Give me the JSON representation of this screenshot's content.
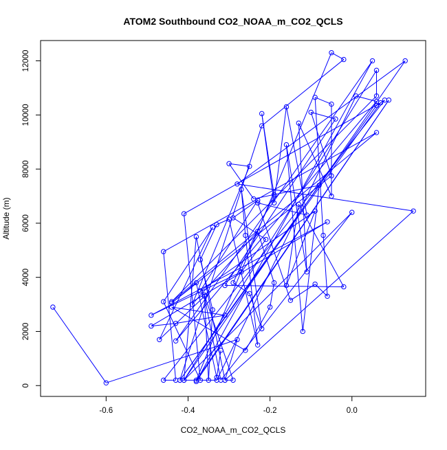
{
  "chart_data": {
    "type": "line",
    "title": "ATOM2 Southbound CO2_NOAA_m_CO2_QCLS",
    "xlabel": "CO2_NOAA_m_CO2_QCLS",
    "ylabel": "Altitude (m)",
    "xlim": [
      -0.76,
      0.18
    ],
    "ylim": [
      -400,
      12750
    ],
    "xticks": [
      -0.6,
      -0.4,
      -0.2,
      0.0
    ],
    "xtick_labels": [
      "-0.6",
      "-0.4",
      "-0.2",
      "0.0"
    ],
    "yticks": [
      0,
      2000,
      4000,
      6000,
      8000,
      10000,
      12000
    ],
    "ytick_labels": [
      "0",
      "2000",
      "4000",
      "6000",
      "8000",
      "10000",
      "12000"
    ],
    "series": [
      {
        "name": "CO2_NOAA_m_CO2_QCLS",
        "color": "#0000ff",
        "marker": "open-circle",
        "x": [
          -0.73,
          -0.6,
          -0.28,
          -0.31,
          0.15,
          -0.28,
          0.13,
          -0.41,
          0.06,
          0.06,
          -0.44,
          0.06,
          -0.46,
          -0.43,
          -0.46,
          0.08,
          0.06,
          -0.42,
          -0.33,
          0.01,
          0.06,
          -0.43,
          0.05,
          -0.38,
          0.09,
          -0.38,
          -0.05,
          -0.02,
          -0.22,
          -0.42,
          0.07,
          -0.41,
          -0.37,
          -0.46,
          -0.34,
          -0.47,
          -0.36,
          -0.32,
          0.0,
          -0.41,
          -0.38,
          -0.31,
          -0.29,
          -0.36,
          -0.35,
          -0.34,
          -0.37,
          -0.33,
          -0.3,
          -0.23,
          -0.26,
          -0.27,
          -0.22,
          -0.25,
          -0.29,
          -0.19,
          -0.22,
          -0.19,
          -0.16,
          -0.11,
          -0.23,
          -0.15,
          -0.09,
          -0.06,
          -0.07,
          -0.09,
          -0.05,
          -0.05,
          -0.13,
          -0.11,
          -0.16,
          -0.12,
          -0.08,
          -0.24,
          -0.3,
          -0.25,
          -0.39,
          -0.23,
          -0.19,
          -0.2,
          -0.26,
          -0.44,
          -0.31,
          -0.43,
          -0.49,
          -0.06,
          -0.49,
          -0.27,
          -0.21,
          -0.29,
          -0.23,
          -0.37,
          -0.09,
          -0.16,
          -0.13,
          -0.02,
          -0.31,
          -0.04,
          -0.1,
          -0.05,
          -0.44,
          -0.38,
          -0.33,
          -0.32
        ],
        "y": [
          2900,
          100,
          1700,
          200,
          6450,
          7450,
          12000,
          200,
          11650,
          10700,
          3100,
          9350,
          4950,
          200,
          200,
          10550,
          10350,
          200,
          200,
          10700,
          10500,
          1650,
          12000,
          150,
          10550,
          200,
          12300,
          12050,
          9600,
          200,
          10450,
          6350,
          200,
          3100,
          5850,
          1700,
          3300,
          200,
          6400,
          200,
          5500,
          200,
          200,
          3350,
          200,
          2800,
          4650,
          5950,
          6150,
          1500,
          5550,
          7250,
          2100,
          3400,
          3800,
          7050,
          10050,
          6750,
          10300,
          6300,
          6750,
          3150,
          3750,
          3300,
          5550,
          10650,
          10400,
          7000,
          9700,
          4200,
          8900,
          2000,
          7400,
          6900,
          8200,
          8100,
          3000,
          5700,
          3800,
          2900,
          1300,
          2900,
          2600,
          2300,
          2200,
          6050,
          2600,
          4200,
          5400,
          6200,
          6850,
          3500,
          6450,
          3700,
          6700,
          3650,
          3700,
          9850,
          10100,
          7750,
          3050,
          3800,
          300,
          1300
        ]
      }
    ]
  }
}
